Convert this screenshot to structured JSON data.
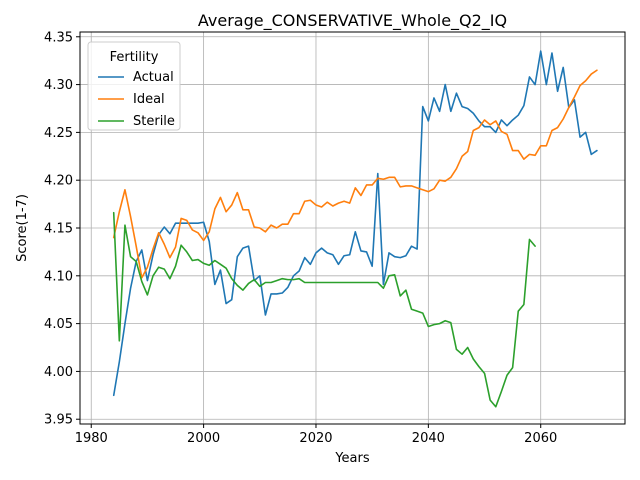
{
  "chart_data": {
    "type": "line",
    "title": "Average_CONSERVATIVE_Whole_Q2_IQ",
    "xlabel": "Years",
    "ylabel": "Score(1-7)",
    "xlim": [
      1978,
      2075
    ],
    "ylim": [
      3.945,
      4.355
    ],
    "xticks": [
      1980,
      2000,
      2020,
      2040,
      2060
    ],
    "xtick_labels": [
      "1980",
      "2000",
      "2020",
      "2040",
      "2060"
    ],
    "yticks": [
      3.95,
      4.0,
      4.05,
      4.1,
      4.15,
      4.2,
      4.25,
      4.3,
      4.35
    ],
    "ytick_labels": [
      "3.95",
      "4.00",
      "4.05",
      "4.10",
      "4.15",
      "4.20",
      "4.25",
      "4.30",
      "4.35"
    ],
    "grid": true,
    "legend": {
      "title": "Fertility",
      "placement": "top-left"
    },
    "series": [
      {
        "name": "Actual",
        "color": "#1f77b4",
        "x": [
          1984,
          1985,
          1986,
          1987,
          1988,
          1989,
          1990,
          1991,
          1992,
          1993,
          1994,
          1995,
          1996,
          1997,
          1998,
          1999,
          2000,
          2001,
          2002,
          2003,
          2004,
          2005,
          2006,
          2007,
          2008,
          2009,
          2010,
          2011,
          2012,
          2013,
          2014,
          2015,
          2016,
          2017,
          2018,
          2019,
          2020,
          2021,
          2022,
          2023,
          2024,
          2025,
          2026,
          2027,
          2028,
          2029,
          2030,
          2031,
          2032,
          2033,
          2034,
          2035,
          2036,
          2037,
          2038,
          2039,
          2040,
          2041,
          2042,
          2043,
          2044,
          2045,
          2046,
          2047,
          2048,
          2049,
          2050,
          2051,
          2052,
          2053,
          2054,
          2055,
          2056,
          2057,
          2058,
          2059,
          2060,
          2061,
          2062,
          2063,
          2064,
          2065,
          2066,
          2067,
          2068,
          2069,
          2070
        ],
        "values": [
          3.975,
          4.01,
          4.05,
          4.087,
          4.115,
          4.127,
          4.095,
          4.122,
          4.143,
          4.151,
          4.144,
          4.155,
          4.155,
          4.155,
          4.155,
          4.155,
          4.156,
          4.136,
          4.091,
          4.106,
          4.071,
          4.075,
          4.12,
          4.129,
          4.131,
          4.095,
          4.1,
          4.059,
          4.081,
          4.081,
          4.082,
          4.088,
          4.1,
          4.105,
          4.119,
          4.112,
          4.124,
          4.129,
          4.124,
          4.122,
          4.112,
          4.121,
          4.122,
          4.146,
          4.126,
          4.125,
          4.11,
          4.207,
          4.091,
          4.124,
          4.12,
          4.119,
          4.121,
          4.131,
          4.128,
          4.277,
          4.262,
          4.286,
          4.272,
          4.3,
          4.272,
          4.291,
          4.277,
          4.275,
          4.27,
          4.262,
          4.256,
          4.256,
          4.25,
          4.263,
          4.257,
          4.263,
          4.268,
          4.278,
          4.308,
          4.3,
          4.335,
          4.3,
          4.333,
          4.293,
          4.318,
          4.276,
          4.284,
          4.245,
          4.25,
          4.227,
          4.231
        ]
      },
      {
        "name": "Ideal",
        "color": "#ff7f0e",
        "x": [
          1984,
          1985,
          1986,
          1987,
          1988,
          1989,
          1990,
          1991,
          1992,
          1993,
          1994,
          1995,
          1996,
          1997,
          1998,
          1999,
          2000,
          2001,
          2002,
          2003,
          2004,
          2005,
          2006,
          2007,
          2008,
          2009,
          2010,
          2011,
          2012,
          2013,
          2014,
          2015,
          2016,
          2017,
          2018,
          2019,
          2020,
          2021,
          2022,
          2023,
          2024,
          2025,
          2026,
          2027,
          2028,
          2029,
          2030,
          2031,
          2032,
          2033,
          2034,
          2035,
          2036,
          2037,
          2038,
          2039,
          2040,
          2041,
          2042,
          2043,
          2044,
          2045,
          2046,
          2047,
          2048,
          2049,
          2050,
          2051,
          2052,
          2053,
          2054,
          2055,
          2056,
          2057,
          2058,
          2059,
          2060,
          2061,
          2062,
          2063,
          2064,
          2065,
          2066,
          2067,
          2068,
          2069,
          2070
        ],
        "values": [
          4.14,
          4.167,
          4.19,
          4.162,
          4.131,
          4.098,
          4.109,
          4.128,
          4.145,
          4.133,
          4.119,
          4.13,
          4.16,
          4.158,
          4.148,
          4.145,
          4.137,
          4.146,
          4.17,
          4.182,
          4.167,
          4.174,
          4.187,
          4.169,
          4.169,
          4.151,
          4.15,
          4.146,
          4.153,
          4.15,
          4.154,
          4.154,
          4.165,
          4.165,
          4.178,
          4.179,
          4.174,
          4.172,
          4.177,
          4.173,
          4.176,
          4.178,
          4.176,
          4.192,
          4.184,
          4.195,
          4.195,
          4.202,
          4.201,
          4.203,
          4.203,
          4.193,
          4.194,
          4.194,
          4.192,
          4.19,
          4.188,
          4.191,
          4.2,
          4.199,
          4.203,
          4.212,
          4.225,
          4.23,
          4.252,
          4.255,
          4.263,
          4.258,
          4.262,
          4.251,
          4.248,
          4.231,
          4.231,
          4.222,
          4.227,
          4.226,
          4.236,
          4.236,
          4.252,
          4.255,
          4.264,
          4.276,
          4.287,
          4.299,
          4.304,
          4.311,
          4.315
        ]
      },
      {
        "name": "Sterile",
        "color": "#2ca02c",
        "x": [
          1984,
          1985,
          1986,
          1987,
          1988,
          1989,
          1990,
          1991,
          1992,
          1993,
          1994,
          1995,
          1996,
          1997,
          1998,
          1999,
          2000,
          2001,
          2002,
          2003,
          2004,
          2005,
          2006,
          2007,
          2008,
          2009,
          2010,
          2011,
          2012,
          2013,
          2014,
          2015,
          2016,
          2017,
          2018,
          2019,
          2020,
          2021,
          2022,
          2023,
          2024,
          2025,
          2026,
          2027,
          2028,
          2029,
          2030,
          2031,
          2032,
          2033,
          2034,
          2035,
          2036,
          2037,
          2038,
          2039,
          2040,
          2041,
          2042,
          2043,
          2044,
          2045,
          2046,
          2047,
          2048,
          2049,
          2050,
          2051,
          2052,
          2053,
          2054,
          2055,
          2056,
          2057,
          2058,
          2059
        ],
        "values": [
          4.166,
          4.032,
          4.153,
          4.12,
          4.115,
          4.094,
          4.08,
          4.1,
          4.109,
          4.107,
          4.097,
          4.11,
          4.132,
          4.125,
          4.116,
          4.117,
          4.113,
          4.111,
          4.116,
          4.112,
          4.108,
          4.097,
          4.09,
          4.085,
          4.092,
          4.096,
          4.089,
          4.093,
          4.093,
          4.095,
          4.097,
          4.096,
          4.096,
          4.097,
          4.093,
          4.093,
          4.093,
          4.093,
          4.093,
          4.093,
          4.093,
          4.093,
          4.093,
          4.093,
          4.093,
          4.093,
          4.093,
          4.093,
          4.087,
          4.1,
          4.101,
          4.079,
          4.085,
          4.065,
          4.063,
          4.061,
          4.047,
          4.049,
          4.05,
          4.053,
          4.051,
          4.023,
          4.018,
          4.025,
          4.013,
          4.005,
          3.998,
          3.97,
          3.963,
          3.979,
          3.996,
          4.004,
          4.063,
          4.07,
          4.138,
          4.131
        ]
      }
    ]
  }
}
